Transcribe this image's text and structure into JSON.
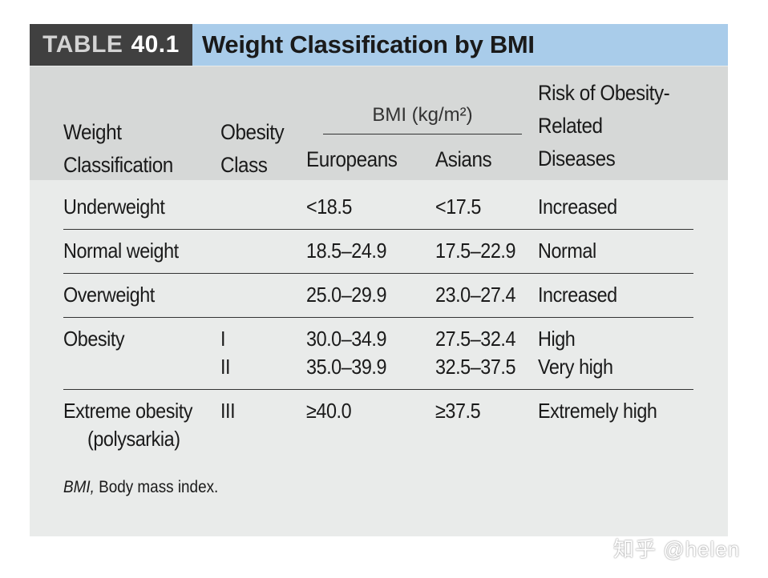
{
  "table": {
    "tag": "TABLE",
    "number": "40.1",
    "title": "Weight Classification by BMI",
    "headers": {
      "weight_line1": "Weight",
      "weight_line2": "Classification",
      "class_line1": "Obesity",
      "class_line2": "Class",
      "bmi_group": "BMI (kg/m²)",
      "europeans": "Europeans",
      "asians": "Asians",
      "risk_line1": "Risk of Obesity-",
      "risk_line2": "Related",
      "risk_line3": "Diseases"
    },
    "rows": [
      {
        "classification": "Underweight",
        "class": "",
        "europeans": "<18.5",
        "asians": "<17.5",
        "risk": "Increased"
      },
      {
        "classification": "Normal weight",
        "class": "",
        "europeans": "18.5–24.9",
        "asians": "17.5–22.9",
        "risk": "Normal"
      },
      {
        "classification": "Overweight",
        "class": "",
        "europeans": "25.0–29.9",
        "asians": "23.0–27.4",
        "risk": "Increased"
      },
      {
        "classification": "Obesity",
        "class": "I",
        "europeans": "30.0–34.9",
        "asians": "27.5–32.4",
        "risk": "High"
      },
      {
        "classification": "",
        "class": "II",
        "europeans": "35.0–39.9",
        "asians": "32.5–37.5",
        "risk": "Very high"
      },
      {
        "classification": "Extreme obesity",
        "classification_line2": "(polysarkia)",
        "class": "III",
        "europeans": "≥40.0",
        "asians": "≥37.5",
        "risk": "Extremely high"
      }
    ],
    "footnote_abbr": "BMI,",
    "footnote_text": " Body mass index."
  },
  "watermark": "知乎 @helen"
}
